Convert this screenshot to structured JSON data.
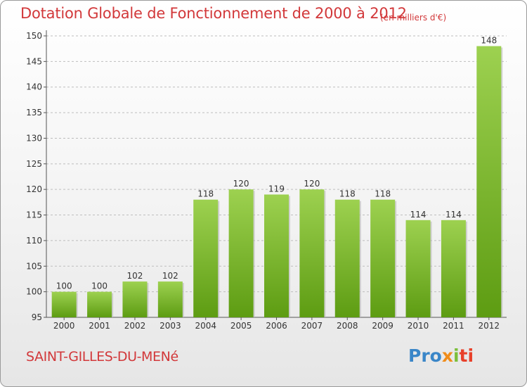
{
  "header": {
    "title": "Dotation Globale de Fonctionnement de 2000 à 2012",
    "unit": "(en milliers d'€)"
  },
  "footer": {
    "city": "SAINT-GILLES-DU-MENé",
    "logo_parts": [
      "Pro",
      "x",
      "i",
      "ti"
    ]
  },
  "colors": {
    "bar_top": "#9dd150",
    "bar_bottom": "#5d9c12",
    "title": "#d2383a",
    "axis": "#555555"
  },
  "chart_data": {
    "type": "bar",
    "title": "Dotation Globale de Fonctionnement de 2000 à 2012",
    "subtitle": "(en milliers d'€)",
    "xlabel": "",
    "ylabel": "",
    "categories": [
      "2000",
      "2001",
      "2002",
      "2003",
      "2004",
      "2005",
      "2006",
      "2007",
      "2008",
      "2009",
      "2010",
      "2011",
      "2012"
    ],
    "values": [
      100,
      100,
      102,
      102,
      118,
      120,
      119,
      120,
      118,
      118,
      114,
      114,
      148
    ],
    "ylim": [
      95,
      150
    ],
    "yticks": [
      95,
      100,
      105,
      110,
      115,
      120,
      125,
      130,
      135,
      140,
      145,
      150
    ],
    "grid": "horizontal dashed",
    "legend": "none"
  }
}
